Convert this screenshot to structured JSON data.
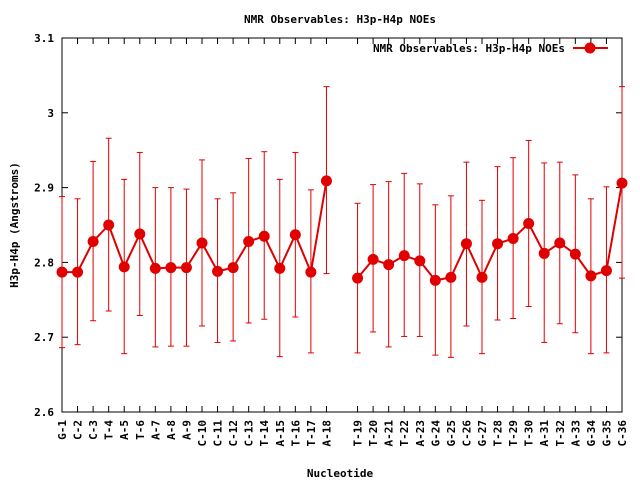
{
  "chart_data": {
    "type": "line",
    "title": "NMR Observables: H3p-H4p NOEs",
    "xlabel": "Nucleotide",
    "ylabel": "H3p-H4p (Angstroms)",
    "ylim": [
      2.6,
      3.1
    ],
    "yticks": [
      "2.6",
      "2.7",
      "2.8",
      "2.9",
      "3",
      "3.1"
    ],
    "ytick_values": [
      2.6,
      2.7,
      2.8,
      2.9,
      3.0,
      3.1
    ],
    "grid": false,
    "legend_position": "top-right",
    "color": "#e00000",
    "categories": [
      "G-1",
      "C-2",
      "C-3",
      "T-4",
      "A-5",
      "T-6",
      "A-7",
      "A-8",
      "A-9",
      "C-10",
      "C-11",
      "C-12",
      "C-13",
      "T-14",
      "A-15",
      "T-16",
      "T-17",
      "A-18",
      "",
      "T-19",
      "T-20",
      "A-21",
      "T-22",
      "A-23",
      "G-24",
      "G-25",
      "C-26",
      "G-27",
      "T-28",
      "T-29",
      "T-30",
      "A-31",
      "T-32",
      "A-33",
      "G-34",
      "G-35",
      "C-36"
    ],
    "series": [
      {
        "name": "NMR Observables: H3p-H4p NOEs",
        "values": [
          2.787,
          2.787,
          2.828,
          2.85,
          2.794,
          2.838,
          2.792,
          2.793,
          2.793,
          2.826,
          2.788,
          2.793,
          2.828,
          2.835,
          2.792,
          2.837,
          2.787,
          2.909,
          null,
          2.779,
          2.804,
          2.797,
          2.809,
          2.802,
          2.776,
          2.78,
          2.825,
          2.78,
          2.825,
          2.832,
          2.852,
          2.812,
          2.826,
          2.811,
          2.782,
          2.789,
          2.906
        ],
        "error_low": [
          2.686,
          2.69,
          2.722,
          2.735,
          2.678,
          2.729,
          2.687,
          2.688,
          2.688,
          2.715,
          2.693,
          2.695,
          2.719,
          2.724,
          2.674,
          2.727,
          2.679,
          2.785,
          null,
          2.679,
          2.707,
          2.687,
          2.701,
          2.701,
          2.676,
          2.673,
          2.715,
          2.678,
          2.723,
          2.725,
          2.741,
          2.693,
          2.718,
          2.706,
          2.678,
          2.679,
          2.779
        ],
        "error_high": [
          2.888,
          2.885,
          2.935,
          2.966,
          2.911,
          2.947,
          2.9,
          2.9,
          2.898,
          2.937,
          2.885,
          2.893,
          2.939,
          2.948,
          2.911,
          2.947,
          2.897,
          3.035,
          null,
          2.879,
          2.904,
          2.908,
          2.919,
          2.905,
          2.877,
          2.889,
          2.934,
          2.883,
          2.928,
          2.94,
          2.963,
          2.933,
          2.934,
          2.917,
          2.885,
          2.901,
          3.035
        ]
      }
    ]
  }
}
